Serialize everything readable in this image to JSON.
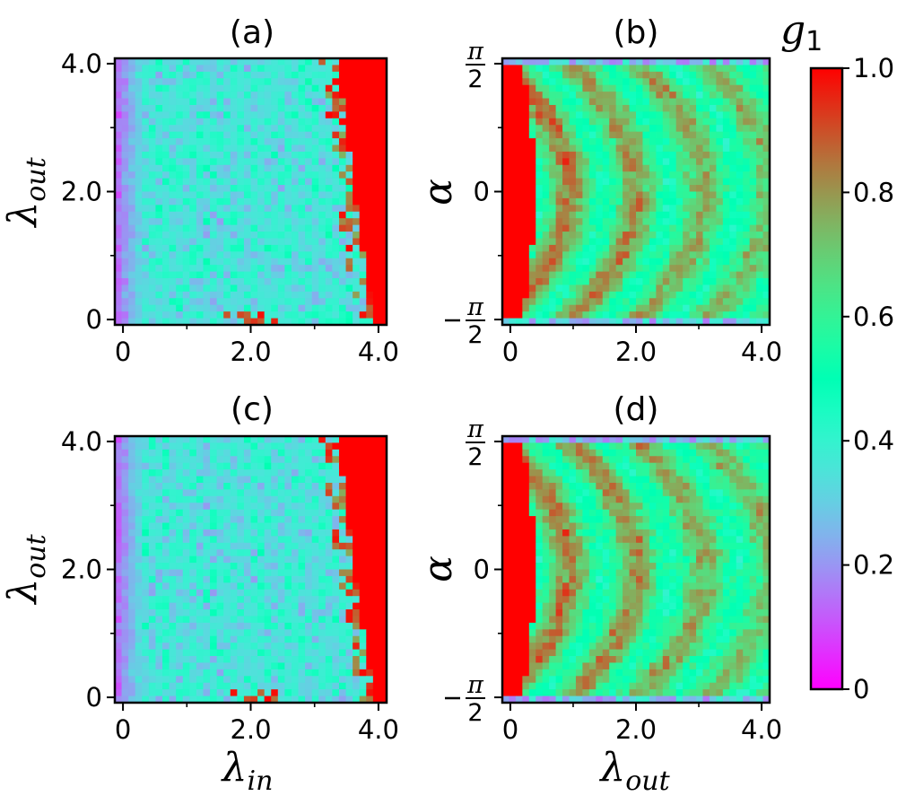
{
  "chart_data": [
    {
      "type": "heatmap",
      "title": "(a)",
      "xlabel": "",
      "ylabel": "λ_out",
      "xlim": [
        0,
        4.0
      ],
      "ylim": [
        0,
        4.0
      ],
      "xticks": [
        0,
        2.0,
        4.0
      ],
      "xtick_labels": [
        "0",
        "2.0",
        "4.0"
      ],
      "yticks": [
        0,
        2.0,
        4.0
      ],
      "ytick_labels": [
        "0",
        "2.0",
        "4.0"
      ],
      "grid_size": [
        40,
        40
      ],
      "pattern": "noisy_low_left_red_right",
      "seed": 11,
      "colormap": "rainbow",
      "clim": [
        0,
        1.0
      ]
    },
    {
      "type": "heatmap",
      "title": "(b)",
      "xlabel": "",
      "ylabel": "α",
      "xlim": [
        0,
        4.0
      ],
      "ylim": [
        -1.5708,
        1.5708
      ],
      "xticks": [
        0,
        2.0,
        4.0
      ],
      "xtick_labels": [
        "0",
        "2.0",
        "4.0"
      ],
      "yticks": [
        -1.5708,
        0,
        1.5708
      ],
      "ytick_labels": [
        "−π/2",
        "0",
        "π/2"
      ],
      "grid_size": [
        40,
        40
      ],
      "pattern": "arcs_red_left",
      "seed": 23,
      "colormap": "rainbow",
      "clim": [
        0,
        1.0
      ]
    },
    {
      "type": "heatmap",
      "title": "(c)",
      "xlabel": "λ_in",
      "ylabel": "λ_out",
      "xlim": [
        0,
        4.0
      ],
      "ylim": [
        0,
        4.0
      ],
      "xticks": [
        0,
        2.0,
        4.0
      ],
      "xtick_labels": [
        "0",
        "2.0",
        "4.0"
      ],
      "yticks": [
        0,
        2.0,
        4.0
      ],
      "ytick_labels": [
        "0",
        "2.0",
        "4.0"
      ],
      "grid_size": [
        40,
        40
      ],
      "pattern": "noisy_low_left_red_right",
      "seed": 37,
      "colormap": "rainbow",
      "clim": [
        0,
        1.0
      ]
    },
    {
      "type": "heatmap",
      "title": "(d)",
      "xlabel": "λ_out",
      "ylabel": "α",
      "xlim": [
        0,
        4.0
      ],
      "ylim": [
        -1.5708,
        1.5708
      ],
      "xticks": [
        0,
        2.0,
        4.0
      ],
      "xtick_labels": [
        "0",
        "2.0",
        "4.0"
      ],
      "yticks": [
        -1.5708,
        0,
        1.5708
      ],
      "ytick_labels": [
        "−π/2",
        "0",
        "π/2"
      ],
      "grid_size": [
        40,
        40
      ],
      "pattern": "arcs_red_left",
      "seed": 53,
      "colormap": "rainbow",
      "clim": [
        0,
        1.0
      ]
    }
  ],
  "colorbar": {
    "label": "g_1",
    "ticks": [
      0,
      0.2,
      0.4,
      0.6,
      0.8,
      1.0
    ],
    "tick_labels": [
      "0",
      "0.2",
      "0.4",
      "0.6",
      "0.8",
      "1.0"
    ],
    "colormap": "rainbow",
    "clim": [
      0,
      1.0
    ]
  }
}
